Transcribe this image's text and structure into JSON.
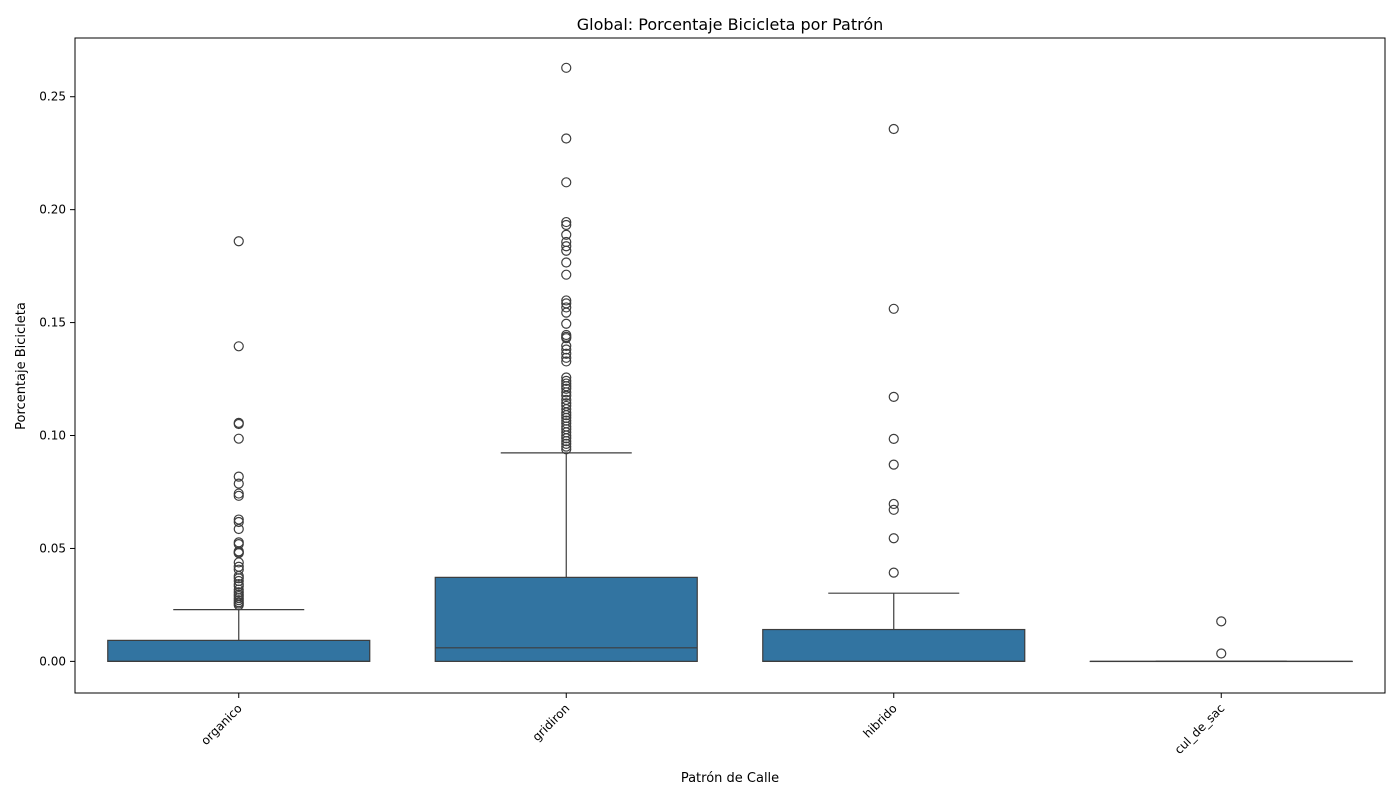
{
  "chart_data": {
    "type": "box",
    "title": "Global: Porcentaje Bicicleta por Patrón",
    "xlabel": "Patrón de Calle",
    "ylabel": "Porcentaje Bicicleta",
    "ylim": [
      -0.014,
      0.276
    ],
    "yticks": [
      0.0,
      0.05,
      0.1,
      0.15,
      0.2,
      0.25
    ],
    "ytick_labels": [
      "0.00",
      "0.05",
      "0.10",
      "0.15",
      "0.20",
      "0.25"
    ],
    "grid": false,
    "box_color": "#3274a1",
    "line_color": "#3d3d3d",
    "categories": [
      "organico",
      "gridiron",
      "hibrido",
      "cul_de_sac"
    ],
    "boxes": [
      {
        "category": "organico",
        "whisker_low": 0.0,
        "q1": 0.0,
        "median": 0.0,
        "q3": 0.0093,
        "whisker_high": 0.0229,
        "outliers": [
          0.186,
          0.1395,
          0.1056,
          0.1051,
          0.0986,
          0.0818,
          0.0787,
          0.0743,
          0.0733,
          0.0628,
          0.0617,
          0.0586,
          0.0527,
          0.0519,
          0.0487,
          0.0482,
          0.0479,
          0.0438,
          0.0419,
          0.0406,
          0.0378,
          0.0368,
          0.0356,
          0.0342,
          0.0333,
          0.0318,
          0.0306,
          0.0296,
          0.0289,
          0.028,
          0.0271,
          0.0262,
          0.0256,
          0.0249
        ]
      },
      {
        "category": "gridiron",
        "whisker_low": 0.0,
        "q1": 0.0,
        "median": 0.006,
        "q3": 0.0372,
        "whisker_high": 0.0923,
        "outliers": [
          0.2628,
          0.2315,
          0.2121,
          0.1945,
          0.1932,
          0.1889,
          0.1857,
          0.1838,
          0.1818,
          0.1766,
          0.1712,
          0.1598,
          0.1585,
          0.1567,
          0.1544,
          0.1495,
          0.1445,
          0.1437,
          0.1431,
          0.1397,
          0.1381,
          0.1362,
          0.1344,
          0.1328,
          0.1257,
          0.1242,
          0.123,
          0.1218,
          0.1207,
          0.1191,
          0.1176,
          0.1158,
          0.1143,
          0.1131,
          0.1117,
          0.1102,
          0.109,
          0.1078,
          0.1066,
          0.1054,
          0.104,
          0.1028,
          0.1014,
          0.1,
          0.0988,
          0.0975,
          0.0963,
          0.0951,
          0.0939
        ]
      },
      {
        "category": "hibrido",
        "whisker_low": 0.0,
        "q1": 0.0,
        "median": 0.0,
        "q3": 0.0141,
        "whisker_high": 0.0302,
        "outliers": [
          0.2357,
          0.1561,
          0.1171,
          0.0985,
          0.0871,
          0.0697,
          0.0671,
          0.0545,
          0.0393
        ]
      },
      {
        "category": "cul_de_sac",
        "whisker_low": 0.0,
        "q1": 0.0,
        "median": 0.0,
        "q3": 0.0,
        "whisker_high": 0.0,
        "outliers": [
          0.0177,
          0.0035
        ]
      }
    ]
  }
}
